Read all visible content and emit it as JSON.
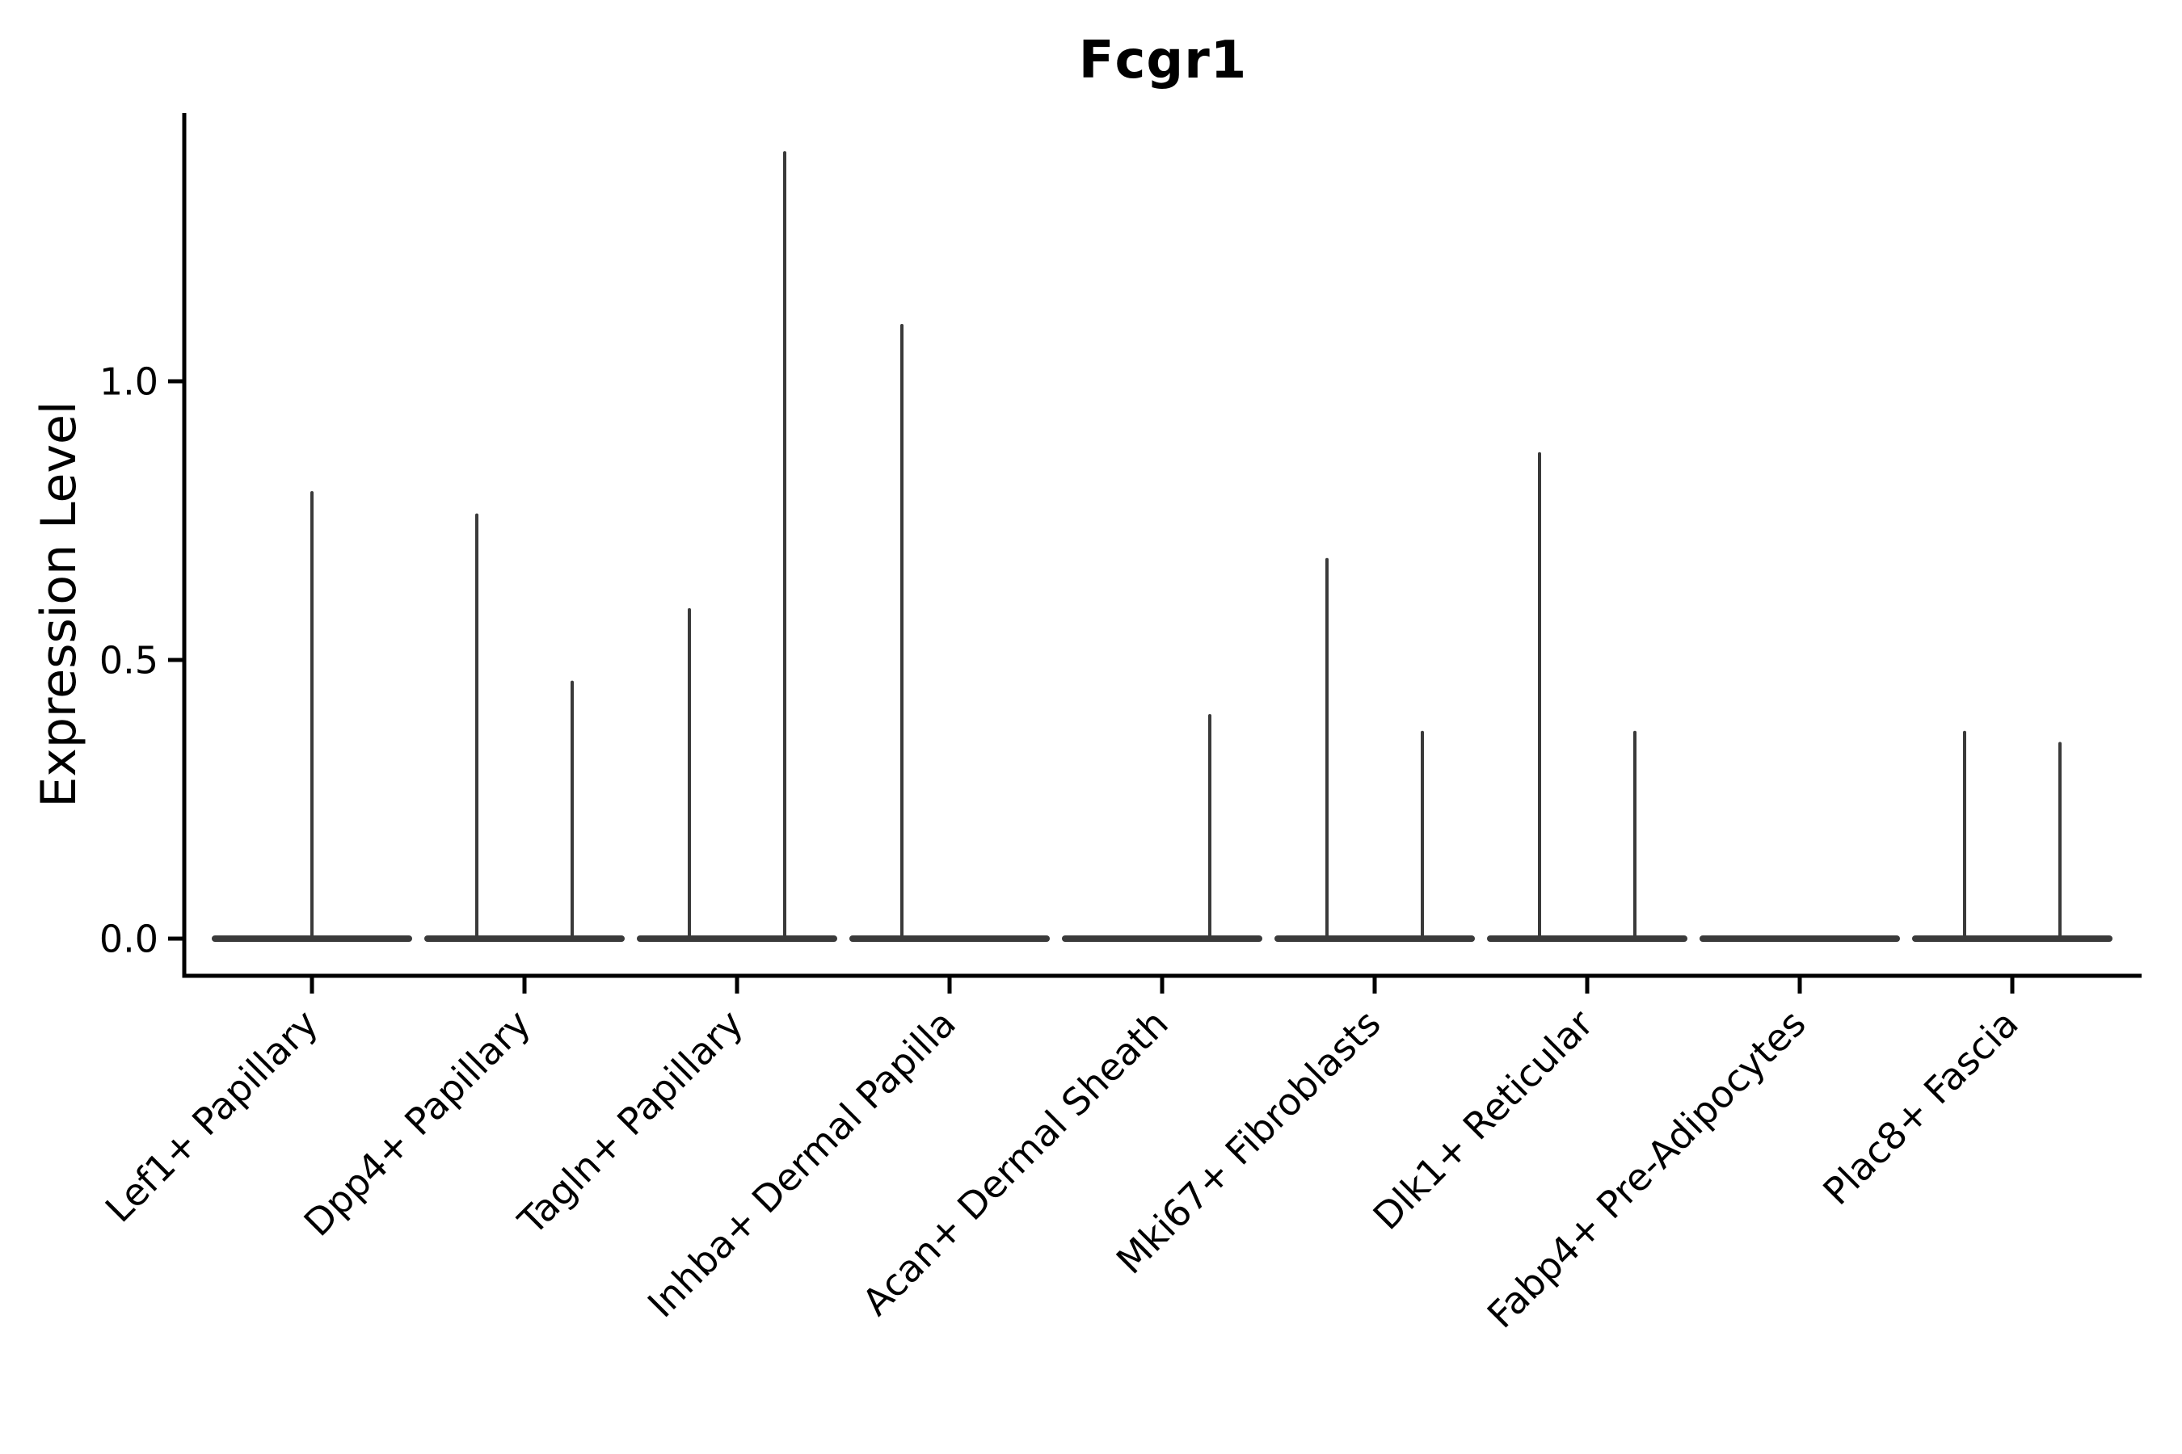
{
  "chart_data": {
    "type": "violin",
    "title": "Fcgr1",
    "ylabel": "Expression Level",
    "xlabel": "",
    "yticks": [
      "0.0",
      "0.5",
      "1.0"
    ],
    "ylim": [
      0,
      1.48
    ],
    "grid": false,
    "legend": "none",
    "categories": [
      "Lef1+ Papillary",
      "Dpp4+ Papillary",
      "Tagln+ Papillary",
      "Inhba+ Dermal Papilla",
      "Acan+ Dermal Sheath",
      "Mki67+ Fibroblasts",
      "Dlk1+ Reticular",
      "Fabp4+ Pre-Adipocytes",
      "Plac8+ Fascia"
    ],
    "violins": [
      {
        "category": "Lef1+ Papillary",
        "spikes": [
          {
            "pos": "center",
            "max": 0.8
          }
        ]
      },
      {
        "category": "Dpp4+ Papillary",
        "spikes": [
          {
            "pos": "left",
            "max": 0.76
          },
          {
            "pos": "right",
            "max": 0.46
          }
        ]
      },
      {
        "category": "Tagln+ Papillary",
        "spikes": [
          {
            "pos": "left",
            "max": 0.59
          },
          {
            "pos": "right",
            "max": 1.41
          }
        ]
      },
      {
        "category": "Inhba+ Dermal Papilla",
        "spikes": [
          {
            "pos": "left",
            "max": 1.1
          }
        ]
      },
      {
        "category": "Acan+ Dermal Sheath",
        "spikes": [
          {
            "pos": "right",
            "max": 0.4
          }
        ]
      },
      {
        "category": "Mki67+ Fibroblasts",
        "spikes": [
          {
            "pos": "left",
            "max": 0.68
          },
          {
            "pos": "right",
            "max": 0.37
          }
        ]
      },
      {
        "category": "Dlk1+ Reticular",
        "spikes": [
          {
            "pos": "left",
            "max": 0.87
          },
          {
            "pos": "right",
            "max": 0.37
          }
        ]
      },
      {
        "category": "Fabp4+ Pre-Adipocytes",
        "spikes": []
      },
      {
        "category": "Plac8+ Fascia",
        "spikes": [
          {
            "pos": "left",
            "max": 0.37
          },
          {
            "pos": "right",
            "max": 0.35
          }
        ]
      }
    ],
    "colors": {
      "violin": "#3A3A3A",
      "axis": "#000000",
      "text": "#000000",
      "background": "#FFFFFF"
    }
  }
}
